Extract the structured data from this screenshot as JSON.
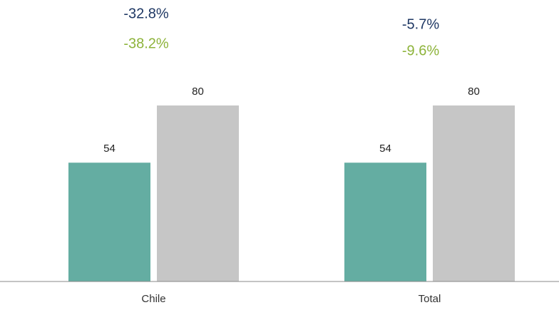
{
  "chart_data": {
    "type": "bar",
    "categories": [
      "Chile",
      "Total"
    ],
    "series": [
      {
        "color": "#64ada2",
        "values": [
          54,
          54
        ]
      },
      {
        "color": "#c6c6c6",
        "values": [
          80,
          80
        ]
      }
    ],
    "annotations": [
      {
        "text": "-32.8%",
        "color": "#1f3864"
      },
      {
        "text": "-38.2%",
        "color": "#8db33a"
      },
      {
        "text": "-5.7%",
        "color": "#1f3864"
      },
      {
        "text": "-9.6%",
        "color": "#8db33a"
      }
    ]
  }
}
